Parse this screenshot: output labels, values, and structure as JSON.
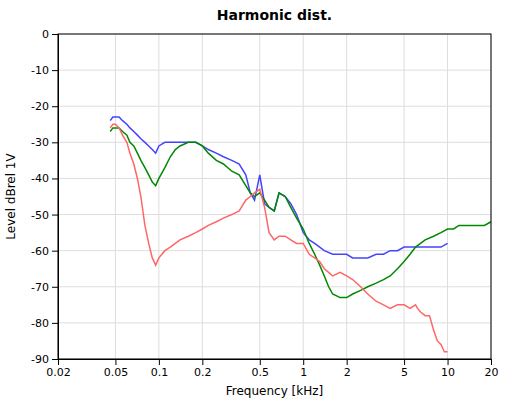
{
  "chart_data": {
    "type": "line",
    "title": "Harmonic dist.",
    "xlabel": "Frequency [kHz]",
    "ylabel": "Level dBrel 1V",
    "log": "x",
    "grid": true,
    "xlim": [
      0.02,
      20
    ],
    "ylim": [
      -90,
      0
    ],
    "xticks": [
      0.02,
      0.05,
      0.1,
      0.2,
      0.5,
      1,
      2,
      5,
      10,
      20
    ],
    "yticks": [
      0,
      -10,
      -20,
      -30,
      -40,
      -50,
      -60,
      -70,
      -80,
      -90
    ],
    "series": [
      {
        "color": "#4444ff",
        "x": [
          0.046,
          0.048,
          0.05,
          0.053,
          0.056,
          0.06,
          0.063,
          0.067,
          0.071,
          0.075,
          0.08,
          0.085,
          0.09,
          0.095,
          0.1,
          0.11,
          0.12,
          0.13,
          0.14,
          0.16,
          0.18,
          0.2,
          0.22,
          0.25,
          0.28,
          0.32,
          0.36,
          0.4,
          0.43,
          0.46,
          0.5,
          0.54,
          0.58,
          0.63,
          0.68,
          0.75,
          0.82,
          0.9,
          1.0,
          1.1,
          1.2,
          1.4,
          1.6,
          1.8,
          2.0,
          2.2,
          2.5,
          2.8,
          3.2,
          3.6,
          4.0,
          4.5,
          5.0,
          5.5,
          6.0,
          6.5,
          7.0,
          8.0,
          9.0,
          10.0
        ],
        "values": [
          -24,
          -23,
          -23,
          -23,
          -24,
          -25,
          -26,
          -27,
          -28,
          -29,
          -30,
          -31,
          -32,
          -33,
          -31,
          -30,
          -30,
          -30,
          -30,
          -30,
          -30,
          -31,
          -32,
          -33,
          -34,
          -35,
          -36,
          -39,
          -44,
          -46,
          -39,
          -47,
          -48,
          -49,
          -44,
          -45,
          -47,
          -50,
          -55,
          -57,
          -58,
          -60,
          -61,
          -61,
          -61,
          -62,
          -62,
          -62,
          -61,
          -61,
          -60,
          -60,
          -59,
          -59,
          -59,
          -59,
          -59,
          -59,
          -59,
          -58
        ]
      },
      {
        "color": "#008800",
        "x": [
          0.046,
          0.048,
          0.05,
          0.053,
          0.056,
          0.06,
          0.063,
          0.067,
          0.071,
          0.075,
          0.08,
          0.085,
          0.09,
          0.095,
          0.1,
          0.11,
          0.12,
          0.13,
          0.14,
          0.16,
          0.18,
          0.2,
          0.22,
          0.25,
          0.28,
          0.32,
          0.36,
          0.4,
          0.43,
          0.46,
          0.5,
          0.54,
          0.58,
          0.63,
          0.68,
          0.75,
          0.82,
          0.9,
          1.0,
          1.1,
          1.2,
          1.3,
          1.4,
          1.5,
          1.6,
          1.8,
          2.0,
          2.2,
          2.5,
          2.8,
          3.2,
          3.6,
          4.0,
          4.5,
          5.0,
          5.5,
          6.0,
          7.0,
          8.0,
          9.0,
          10.0,
          11.0,
          12.0,
          14.0,
          16.0,
          18.0,
          20.0
        ],
        "values": [
          -27,
          -26,
          -26,
          -26,
          -27,
          -28,
          -30,
          -31,
          -33,
          -35,
          -37,
          -39,
          -41,
          -42,
          -40,
          -37,
          -34,
          -32,
          -31,
          -30,
          -30,
          -31,
          -33,
          -35,
          -36,
          -38,
          -39,
          -42,
          -44,
          -45,
          -44,
          -46,
          -48,
          -49,
          -44,
          -45,
          -48,
          -51,
          -54,
          -58,
          -61,
          -64,
          -67,
          -70,
          -72,
          -73,
          -73,
          -72,
          -71,
          -70,
          -69,
          -68,
          -67,
          -65,
          -63,
          -61,
          -59,
          -57,
          -56,
          -55,
          -54,
          -54,
          -53,
          -53,
          -53,
          -53,
          -52
        ]
      },
      {
        "color": "#ff6666",
        "x": [
          0.046,
          0.048,
          0.05,
          0.053,
          0.056,
          0.06,
          0.063,
          0.067,
          0.071,
          0.075,
          0.08,
          0.085,
          0.09,
          0.095,
          0.1,
          0.11,
          0.12,
          0.13,
          0.14,
          0.16,
          0.18,
          0.2,
          0.22,
          0.25,
          0.28,
          0.32,
          0.36,
          0.4,
          0.43,
          0.46,
          0.5,
          0.54,
          0.58,
          0.63,
          0.68,
          0.75,
          0.82,
          0.9,
          1.0,
          1.1,
          1.2,
          1.3,
          1.4,
          1.5,
          1.6,
          1.8,
          2.0,
          2.2,
          2.5,
          2.8,
          3.2,
          3.6,
          4.0,
          4.5,
          5.0,
          5.5,
          6.0,
          6.2,
          6.5,
          7.0,
          7.5,
          8.0,
          8.5,
          9.0,
          9.5,
          10.0
        ],
        "values": [
          -26,
          -25,
          -25,
          -26,
          -28,
          -30,
          -33,
          -36,
          -40,
          -45,
          -53,
          -58,
          -62,
          -64,
          -62,
          -60,
          -59,
          -58,
          -57,
          -56,
          -55,
          -54,
          -53,
          -52,
          -51,
          -50,
          -49,
          -46,
          -45,
          -44,
          -43,
          -48,
          -55,
          -57,
          -56,
          -56,
          -57,
          -58,
          -58,
          -61,
          -62,
          -63,
          -65,
          -66,
          -67,
          -66,
          -67,
          -68,
          -70,
          -72,
          -74,
          -75,
          -76,
          -75,
          -75,
          -76,
          -75,
          -76,
          -77,
          -78,
          -78,
          -82,
          -85,
          -86,
          -88,
          -88
        ]
      }
    ]
  }
}
